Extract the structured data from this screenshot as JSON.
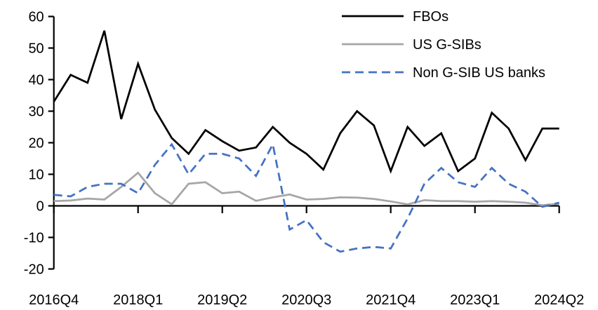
{
  "chart_data": {
    "type": "line",
    "title": "",
    "xlabel": "",
    "ylabel": "",
    "ylim": [
      -20,
      60
    ],
    "y_ticks": [
      60,
      50,
      40,
      30,
      20,
      10,
      0,
      -10,
      -20
    ],
    "x": [
      "2016Q4",
      "2017Q1",
      "2017Q2",
      "2017Q3",
      "2017Q4",
      "2018Q1",
      "2018Q2",
      "2018Q3",
      "2018Q4",
      "2019Q1",
      "2019Q2",
      "2019Q3",
      "2019Q4",
      "2020Q1",
      "2020Q2",
      "2020Q3",
      "2020Q4",
      "2021Q1",
      "2021Q2",
      "2021Q3",
      "2021Q4",
      "2022Q1",
      "2022Q2",
      "2022Q3",
      "2022Q4",
      "2023Q1",
      "2023Q2",
      "2023Q3",
      "2023Q4",
      "2024Q1",
      "2024Q2"
    ],
    "x_tick_labels_shown": [
      "2016Q4",
      "2018Q1",
      "2019Q2",
      "2020Q3",
      "2021Q4",
      "2023Q1",
      "2024Q2"
    ],
    "x_tick_label_indices": [
      0,
      5,
      10,
      15,
      20,
      25,
      30
    ],
    "grid": "off",
    "legend_position": "top-right",
    "series": [
      {
        "name": "FBOs",
        "color": "#000000",
        "style": "solid",
        "values": [
          33,
          41.5,
          39,
          55.5,
          27.5,
          45,
          30.5,
          21.5,
          16.5,
          24,
          20.5,
          17.5,
          18.5,
          25,
          20,
          16.5,
          11.5,
          23,
          30,
          25.5,
          11,
          25,
          19,
          23,
          11,
          15,
          29.5,
          24.5,
          14.5,
          24.5,
          24.5
        ]
      },
      {
        "name": "US G-SIBs",
        "color": "#A6A6A6",
        "style": "solid",
        "values": [
          1.5,
          1.7,
          2.3,
          2,
          6,
          10.5,
          4,
          0.5,
          7,
          7.5,
          4,
          4.5,
          1.6,
          2.7,
          3.6,
          2,
          2.2,
          2.7,
          2.6,
          2.2,
          1.4,
          0.5,
          1.8,
          1.5,
          1.5,
          1.3,
          1.5,
          1.3,
          1,
          0.2,
          0.7
        ]
      },
      {
        "name": "Non G-SIB US banks",
        "color": "#4472C4",
        "style": "dashed",
        "values": [
          3.5,
          3,
          6,
          7,
          7,
          4,
          13,
          19.5,
          10,
          16.5,
          16.5,
          15,
          9.5,
          19.5,
          -7.5,
          -4.5,
          -11.5,
          -14.5,
          -13.5,
          -13,
          -13.5,
          -4,
          7,
          12,
          7.5,
          6,
          12,
          7,
          4.5,
          -0.3,
          1
        ]
      }
    ]
  }
}
